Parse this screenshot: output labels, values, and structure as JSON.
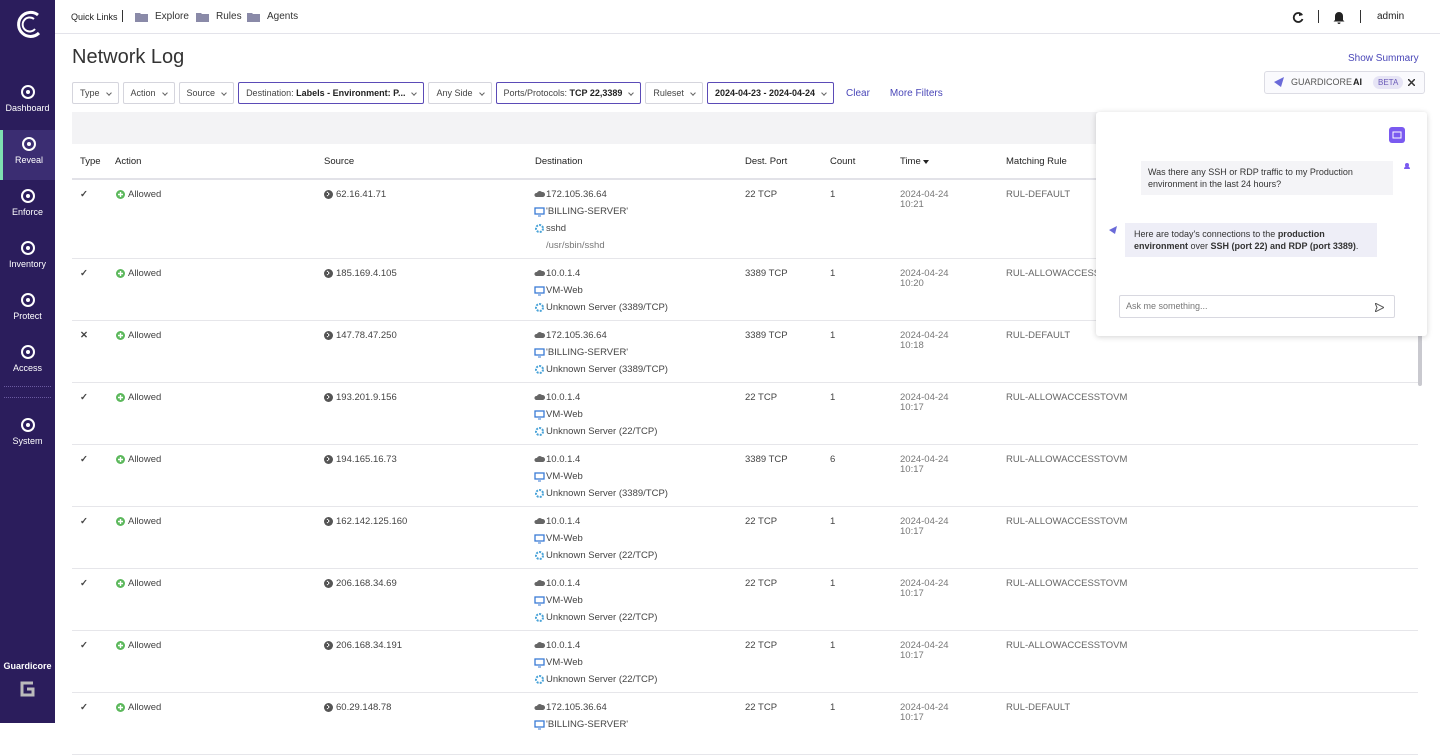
{
  "sidebar": {
    "items": [
      "Dashboard",
      "Reveal",
      "Enforce",
      "Inventory",
      "Protect",
      "Access",
      "System"
    ],
    "active": "Reveal",
    "brand": "Guardicore"
  },
  "topbar": {
    "quick_links": "Quick Links",
    "links": [
      "Explore",
      "Rules",
      "Agents"
    ],
    "user": "admin"
  },
  "page": {
    "title": "Network Log",
    "show_summary": "Show Summary"
  },
  "filters": [
    {
      "label": "Type"
    },
    {
      "label": "Action"
    },
    {
      "label": "Source"
    },
    {
      "label": "Destination:",
      "value": "Labels - Environment: P..."
    },
    {
      "label": "Any Side"
    },
    {
      "label": "Ports/Protocols:",
      "value": "TCP 22,3389"
    },
    {
      "label": "Ruleset"
    },
    {
      "value": "2024-04-23 - 2024-04-24"
    }
  ],
  "filter_actions": [
    "Clear",
    "More Filters"
  ],
  "table": {
    "columns": [
      "Type",
      "Action",
      "Source",
      "Destination",
      "Dest. Port",
      "Count",
      "Time",
      "Matching Rule"
    ],
    "rows": [
      {
        "type": "✓",
        "action": "Allowed",
        "source": "62.16.41.71",
        "destination": [
          "172.105.36.64",
          "'BILLING-SERVER'",
          "sshd",
          "/usr/sbin/sshd"
        ],
        "port": "22 TCP",
        "count": 1,
        "date": "2024-04-24",
        "time": "10:21",
        "rule": "RUL-DEFAULT"
      },
      {
        "type": "✓",
        "action": "Allowed",
        "source": "185.169.4.105",
        "destination": [
          "10.0.1.4",
          "VM-Web",
          "Unknown Server (3389/TCP)"
        ],
        "port": "3389 TCP",
        "count": 1,
        "date": "2024-04-24",
        "time": "10:20",
        "rule": "RUL-ALLOWACCESSTOVM"
      },
      {
        "type": "✕",
        "action": "Allowed",
        "source": "147.78.47.250",
        "destination": [
          "172.105.36.64",
          "'BILLING-SERVER'",
          "Unknown Server (3389/TCP)"
        ],
        "port": "3389 TCP",
        "count": 1,
        "date": "2024-04-24",
        "time": "10:18",
        "rule": "RUL-DEFAULT"
      },
      {
        "type": "✓",
        "action": "Allowed",
        "source": "193.201.9.156",
        "destination": [
          "10.0.1.4",
          "VM-Web",
          "Unknown Server (22/TCP)"
        ],
        "port": "22 TCP",
        "count": 1,
        "date": "2024-04-24",
        "time": "10:17",
        "rule": "RUL-ALLOWACCESSTOVM"
      },
      {
        "type": "✓",
        "action": "Allowed",
        "source": "194.165.16.73",
        "destination": [
          "10.0.1.4",
          "VM-Web",
          "Unknown Server (3389/TCP)"
        ],
        "port": "3389 TCP",
        "count": 6,
        "date": "2024-04-24",
        "time": "10:17",
        "rule": "RUL-ALLOWACCESSTOVM"
      },
      {
        "type": "✓",
        "action": "Allowed",
        "source": "162.142.125.160",
        "destination": [
          "10.0.1.4",
          "VM-Web",
          "Unknown Server (22/TCP)"
        ],
        "port": "22 TCP",
        "count": 1,
        "date": "2024-04-24",
        "time": "10:17",
        "rule": "RUL-ALLOWACCESSTOVM"
      },
      {
        "type": "✓",
        "action": "Allowed",
        "source": "206.168.34.69",
        "destination": [
          "10.0.1.4",
          "VM-Web",
          "Unknown Server (22/TCP)"
        ],
        "port": "22 TCP",
        "count": 1,
        "date": "2024-04-24",
        "time": "10:17",
        "rule": "RUL-ALLOWACCESSTOVM"
      },
      {
        "type": "✓",
        "action": "Allowed",
        "source": "206.168.34.191",
        "destination": [
          "10.0.1.4",
          "VM-Web",
          "Unknown Server (22/TCP)"
        ],
        "port": "22 TCP",
        "count": 1,
        "date": "2024-04-24",
        "time": "10:17",
        "rule": "RUL-ALLOWACCESSTOVM"
      },
      {
        "type": "✓",
        "action": "Allowed",
        "source": "60.29.148.78",
        "destination": [
          "172.105.36.64",
          "'BILLING-SERVER'"
        ],
        "port": "22 TCP",
        "count": 1,
        "date": "2024-04-24",
        "time": "10:17",
        "rule": "RUL-DEFAULT"
      }
    ]
  },
  "ai_panel": {
    "title": "GUARDICORE",
    "title_bold": "AI",
    "badge": "BETA",
    "user_message": "Was there any SSH or RDP traffic to my Production environment in the last 24 hours?",
    "reply": [
      {
        "text": "Here are today's connections to the "
      },
      {
        "text": "production environment",
        "bold": true
      },
      {
        "text": " over "
      },
      {
        "text": "SSH (port 22) and RDP (port 3389)",
        "bold": true
      },
      {
        "text": "."
      }
    ],
    "placeholder": "Ask me something..."
  }
}
